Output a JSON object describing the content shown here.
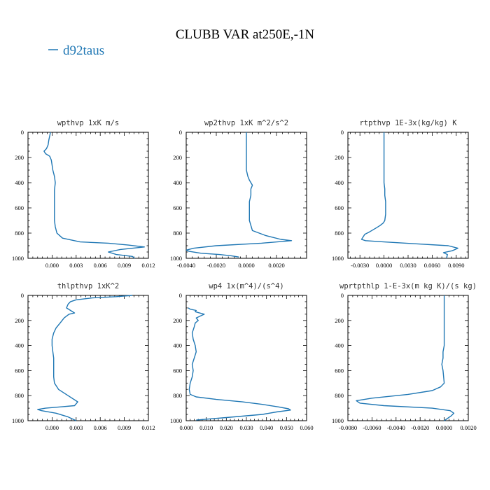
{
  "figure": {
    "title": "CLUBB VAR at250E,-1N",
    "legend": {
      "label": "d92taus",
      "color": "#1f77b4"
    },
    "line_color": "#1f77b4"
  },
  "chart_data": [
    {
      "type": "line",
      "title": "wpthvp  1xK m/s",
      "xlim": [
        -0.003,
        0.012
      ],
      "ylim": [
        1000,
        0
      ],
      "xticks": [
        0.0,
        0.003,
        0.006,
        0.009,
        0.012
      ],
      "xtick_labels": [
        "0.000",
        "0.003",
        "0.006",
        "0.009",
        "0.012"
      ],
      "yticks": [
        0,
        200,
        400,
        600,
        800,
        1000
      ],
      "ytick_labels": [
        "0",
        "200",
        "400",
        "600",
        "800",
        "1000"
      ],
      "series": [
        {
          "x": [
            -0.0002,
            -0.0003,
            -0.0004,
            -0.0005,
            -0.0007,
            -0.001,
            -0.0008,
            -0.0003,
            -0.0001,
            0.0,
            0.0001,
            0.0003,
            0.0004,
            0.0003,
            0.0003,
            0.0003,
            0.0003,
            0.0003,
            0.0003,
            0.0004,
            0.0006,
            0.0013,
            0.0035,
            0.007,
            0.0095,
            0.0115,
            0.0085,
            0.007,
            0.008,
            0.01,
            0.0103
          ],
          "y": [
            0,
            30,
            60,
            100,
            130,
            150,
            170,
            190,
            220,
            260,
            300,
            350,
            400,
            460,
            500,
            560,
            600,
            650,
            700,
            750,
            800,
            840,
            870,
            880,
            895,
            910,
            930,
            950,
            970,
            985,
            1000
          ]
        }
      ]
    },
    {
      "type": "line",
      "title": "wp2thvp  1xK m^2/s^2",
      "xlim": [
        -0.004,
        0.004
      ],
      "ylim": [
        1000,
        0
      ],
      "xticks": [
        -0.004,
        -0.002,
        0.0,
        0.002
      ],
      "xtick_labels": [
        "-0.0040",
        "-0.0020",
        "0.0000",
        "0.0020"
      ],
      "yticks": [
        0,
        200,
        400,
        600,
        800,
        1000
      ],
      "ytick_labels": [
        "0",
        "200",
        "400",
        "600",
        "800",
        "1000"
      ],
      "series": [
        {
          "x": [
            0.0,
            0.0,
            0.0,
            0.0,
            0.0,
            0.0,
            0.0,
            0.0001,
            0.0002,
            0.0004,
            0.0003,
            0.0003,
            0.0002,
            0.0002,
            0.0002,
            0.0002,
            0.0004,
            0.0013,
            0.0023,
            0.003,
            0.001,
            -0.002,
            -0.0035,
            -0.004,
            -0.0038,
            -0.003,
            -0.0018,
            -0.001,
            -0.0005
          ],
          "y": [
            0,
            50,
            100,
            150,
            200,
            250,
            300,
            350,
            380,
            420,
            450,
            500,
            550,
            600,
            650,
            700,
            780,
            820,
            850,
            860,
            880,
            900,
            920,
            935,
            945,
            960,
            970,
            980,
            990
          ]
        }
      ]
    },
    {
      "type": "line",
      "title": "rtpthvp  1E-3x(kg/kg) K",
      "xlim": [
        -0.0045,
        0.0105
      ],
      "ylim": [
        1000,
        0
      ],
      "xticks": [
        -0.003,
        0.0,
        0.003,
        0.006,
        0.009
      ],
      "xtick_labels": [
        "-0.0030",
        "0.0000",
        "0.0030",
        "0.0060",
        "0.0090"
      ],
      "yticks": [
        0,
        200,
        400,
        600,
        800,
        1000
      ],
      "ytick_labels": [
        "0",
        "200",
        "400",
        "600",
        "800",
        "1000"
      ],
      "series": [
        {
          "x": [
            0.0,
            0.0,
            0.0,
            0.0,
            0.0,
            0.0001,
            0.0001,
            0.0002,
            0.0002,
            0.0002,
            0.0001,
            -0.0001,
            -0.0005,
            -0.001,
            -0.0018,
            -0.0024,
            -0.0028,
            -0.0023,
            0.0,
            0.004,
            0.008,
            0.0092,
            0.0085,
            0.0074,
            0.0079,
            0.0078
          ],
          "y": [
            0,
            100,
            200,
            300,
            400,
            450,
            500,
            550,
            600,
            650,
            700,
            720,
            740,
            760,
            790,
            810,
            850,
            860,
            870,
            885,
            900,
            920,
            940,
            955,
            970,
            1000
          ]
        }
      ]
    },
    {
      "type": "line",
      "title": "thlpthvp  1xK^2",
      "xlim": [
        -0.003,
        0.012
      ],
      "ylim": [
        1000,
        0
      ],
      "xticks": [
        0.0,
        0.003,
        0.006,
        0.009,
        0.012
      ],
      "xtick_labels": [
        "0.000",
        "0.003",
        "0.006",
        "0.009",
        "0.012"
      ],
      "yticks": [
        0,
        200,
        400,
        600,
        800,
        1000
      ],
      "ytick_labels": [
        "0",
        "200",
        "400",
        "600",
        "800",
        "1000"
      ],
      "series": [
        {
          "x": [
            0.01,
            0.008,
            0.005,
            0.003,
            0.0023,
            0.002,
            0.0018,
            0.0023,
            0.0028,
            0.0021,
            0.0015,
            0.001,
            0.0005,
            0.0002,
            0.0,
            0.0,
            0.0001,
            0.0002,
            0.0002,
            0.0002,
            0.0002,
            0.0003,
            0.0008,
            0.002,
            0.0032,
            0.0028,
            0.001,
            -0.0008,
            -0.0018,
            -0.0013,
            0.0005,
            0.002,
            0.003
          ],
          "y": [
            0,
            10,
            20,
            35,
            50,
            70,
            100,
            120,
            140,
            150,
            180,
            220,
            260,
            300,
            350,
            400,
            450,
            500,
            550,
            600,
            650,
            700,
            750,
            800,
            850,
            880,
            890,
            900,
            910,
            920,
            940,
            970,
            1000
          ]
        }
      ]
    },
    {
      "type": "line",
      "title": "wp4  1x(m^4)/(s^4)",
      "xlim": [
        0.0,
        0.06
      ],
      "ylim": [
        1000,
        0
      ],
      "xticks": [
        0.0,
        0.01,
        0.02,
        0.03,
        0.04,
        0.05,
        0.06
      ],
      "xtick_labels": [
        "0.000",
        "0.010",
        "0.020",
        "0.030",
        "0.040",
        "0.050",
        "0.060"
      ],
      "yticks": [
        0,
        200,
        400,
        600,
        800,
        1000
      ],
      "ytick_labels": [
        "0",
        "200",
        "400",
        "600",
        "800",
        "1000"
      ],
      "series": [
        {
          "x": [
            0.001,
            0.002,
            0.005,
            0.0045,
            0.009,
            0.007,
            0.005,
            0.006,
            0.0045,
            0.004,
            0.003,
            0.0035,
            0.0045,
            0.005,
            0.004,
            0.003,
            0.0035,
            0.003,
            0.002,
            0.0015,
            0.002,
            0.005,
            0.015,
            0.028,
            0.038,
            0.046,
            0.051,
            0.052,
            0.045,
            0.038,
            0.02,
            0.005
          ],
          "y": [
            100,
            110,
            120,
            130,
            150,
            165,
            180,
            200,
            220,
            250,
            300,
            350,
            400,
            450,
            500,
            550,
            600,
            650,
            700,
            750,
            790,
            810,
            830,
            850,
            870,
            890,
            905,
            915,
            930,
            950,
            975,
            995
          ]
        }
      ]
    },
    {
      "type": "line",
      "title": "wprtpthlp  1-E-3x(m kg K)/(s kg)",
      "xlim": [
        -0.008,
        0.002
      ],
      "ylim": [
        1000,
        0
      ],
      "xticks": [
        -0.008,
        -0.006,
        -0.004,
        -0.002,
        0.0,
        0.002
      ],
      "xtick_labels": [
        "-0.0080",
        "-0.0060",
        "-0.0040",
        "-0.0020",
        "0.0000",
        "0.0020"
      ],
      "yticks": [
        0,
        200,
        400,
        600,
        800,
        1000
      ],
      "ytick_labels": [
        "0",
        "200",
        "400",
        "600",
        "800",
        "1000"
      ],
      "series": [
        {
          "x": [
            0.0,
            0.0,
            0.0,
            0.0,
            0.0,
            -0.0001,
            -0.0001,
            -0.0002,
            -0.0001,
            0.0,
            -0.0003,
            -0.001,
            -0.003,
            -0.006,
            -0.0073,
            -0.007,
            -0.005,
            -0.001,
            0.0005,
            0.0008,
            0.0006,
            0.0
          ],
          "y": [
            0,
            100,
            200,
            300,
            400,
            450,
            500,
            550,
            600,
            700,
            730,
            760,
            790,
            820,
            840,
            860,
            880,
            900,
            920,
            940,
            960,
            1000
          ]
        }
      ]
    }
  ]
}
